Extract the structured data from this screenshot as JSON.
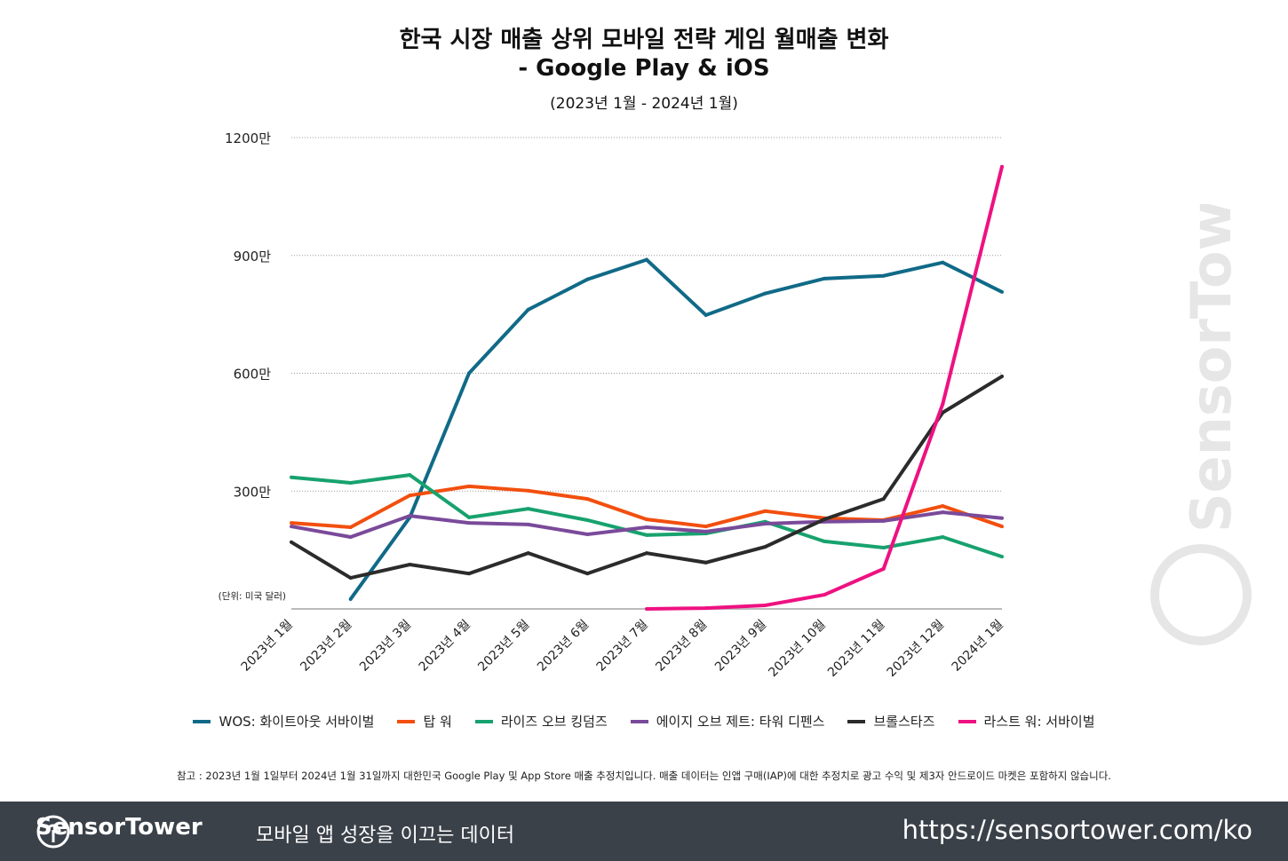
{
  "chart_data": {
    "type": "line",
    "title": "한국 시장 매출 상위 모바일 전략 게임 월매출 변화",
    "subtitle": "- Google Play & iOS",
    "period": "(2023년 1월 - 2024년 1월)",
    "unit_label": "(단위: 미국 달러)",
    "ylim": [
      0,
      1200
    ],
    "yticks": [
      {
        "v": 300,
        "label": "300만"
      },
      {
        "v": 600,
        "label": "600만"
      },
      {
        "v": 900,
        "label": "900만"
      },
      {
        "v": 1200,
        "label": "1200만"
      }
    ],
    "grid": true,
    "legend_position": "bottom",
    "categories": [
      "2023년 1월",
      "2023년 2월",
      "2023년 3월",
      "2023년 4월",
      "2023년 5월",
      "2023년 6월",
      "2023년 7월",
      "2023년 8월",
      "2023년 9월",
      "2023년 10월",
      "2023년 11월",
      "2023년 12월",
      "2024년 1월"
    ],
    "series": [
      {
        "name": "WOS: 화이트아웃 서바이벌",
        "color": "#106a87",
        "values": [
          null,
          25,
          233,
          600,
          762,
          839,
          889,
          748,
          803,
          841,
          848,
          882,
          807
        ]
      },
      {
        "name": "탑 워",
        "color": "#f24f0f",
        "values": [
          219,
          208,
          289,
          312,
          301,
          280,
          228,
          210,
          249,
          231,
          226,
          262,
          210
        ]
      },
      {
        "name": "라이즈 오브 킹덤즈",
        "color": "#17a26e",
        "values": [
          335,
          321,
          341,
          233,
          255,
          226,
          188,
          192,
          222,
          172,
          156,
          183,
          133
        ]
      },
      {
        "name": "에이지 오브 제트: 타워 디펜스",
        "color": "#7a4a9a",
        "values": [
          210,
          183,
          237,
          219,
          215,
          190,
          208,
          197,
          217,
          222,
          224,
          246,
          231
        ]
      },
      {
        "name": "브롤스타즈",
        "color": "#2b2b2b",
        "values": [
          170,
          79,
          113,
          90,
          142,
          90,
          142,
          118,
          158,
          228,
          280,
          500,
          592
        ]
      },
      {
        "name": "라스트 워: 서바이벌",
        "color": "#ee1181",
        "values": [
          null,
          null,
          null,
          null,
          null,
          null,
          0,
          2,
          9,
          36,
          102,
          522,
          1126
        ]
      }
    ]
  },
  "note": "참고 : 2023년 1월 1일부터 2024년 1월 31일까지 대한민국 Google Play 및 App Store 매출 추정치입니다. 매출 데이터는 인앱 구매(IAP)에 대한 추정치로 광고 수익 및 제3자 안드로이드 마켓은 포함하지 않습니다.",
  "footer": {
    "brand": "SensorTower",
    "tagline": "모바일 앱 성장을 이끄는 데이터",
    "url": "https://sensortower.com/ko"
  },
  "watermark": "SensorTower"
}
